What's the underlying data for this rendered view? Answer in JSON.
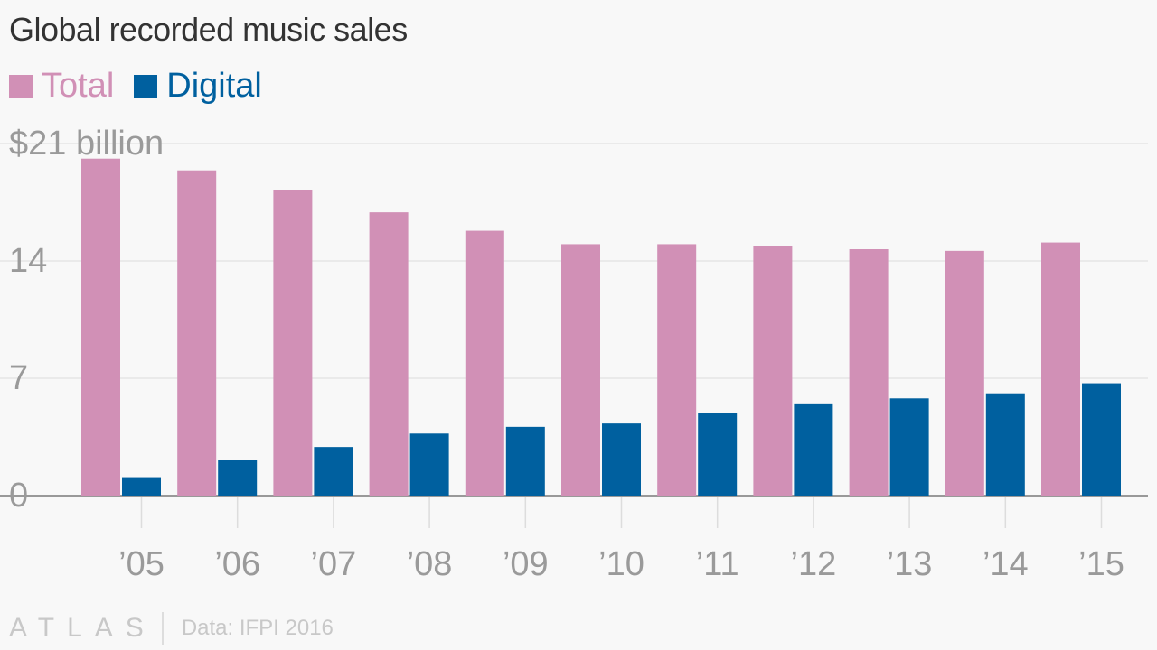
{
  "title": "Global recorded music sales",
  "colors": {
    "total": "#d190b6",
    "digital": "#00609f"
  },
  "chart_data": {
    "type": "bar",
    "categories": [
      "’05",
      "’06",
      "’07",
      "’08",
      "’09",
      "’10",
      "’11",
      "’12",
      "’13",
      "’14",
      "’15"
    ],
    "series": [
      {
        "name": "Total",
        "values": [
          20.1,
          19.4,
          18.2,
          16.9,
          15.8,
          15.0,
          15.0,
          14.9,
          14.7,
          14.6,
          15.1
        ]
      },
      {
        "name": "Digital",
        "values": [
          1.1,
          2.1,
          2.9,
          3.7,
          4.1,
          4.3,
          4.9,
          5.5,
          5.8,
          6.1,
          6.7
        ]
      }
    ],
    "yticks": [
      0,
      7,
      14,
      21
    ],
    "ytick_labels": [
      "0",
      "7",
      "14",
      "$21 billion"
    ],
    "ylim": [
      0,
      21
    ],
    "grid": true,
    "legend": "top-left"
  },
  "footer": {
    "brand": "ATLAS",
    "source": "Data: IFPI 2016"
  }
}
